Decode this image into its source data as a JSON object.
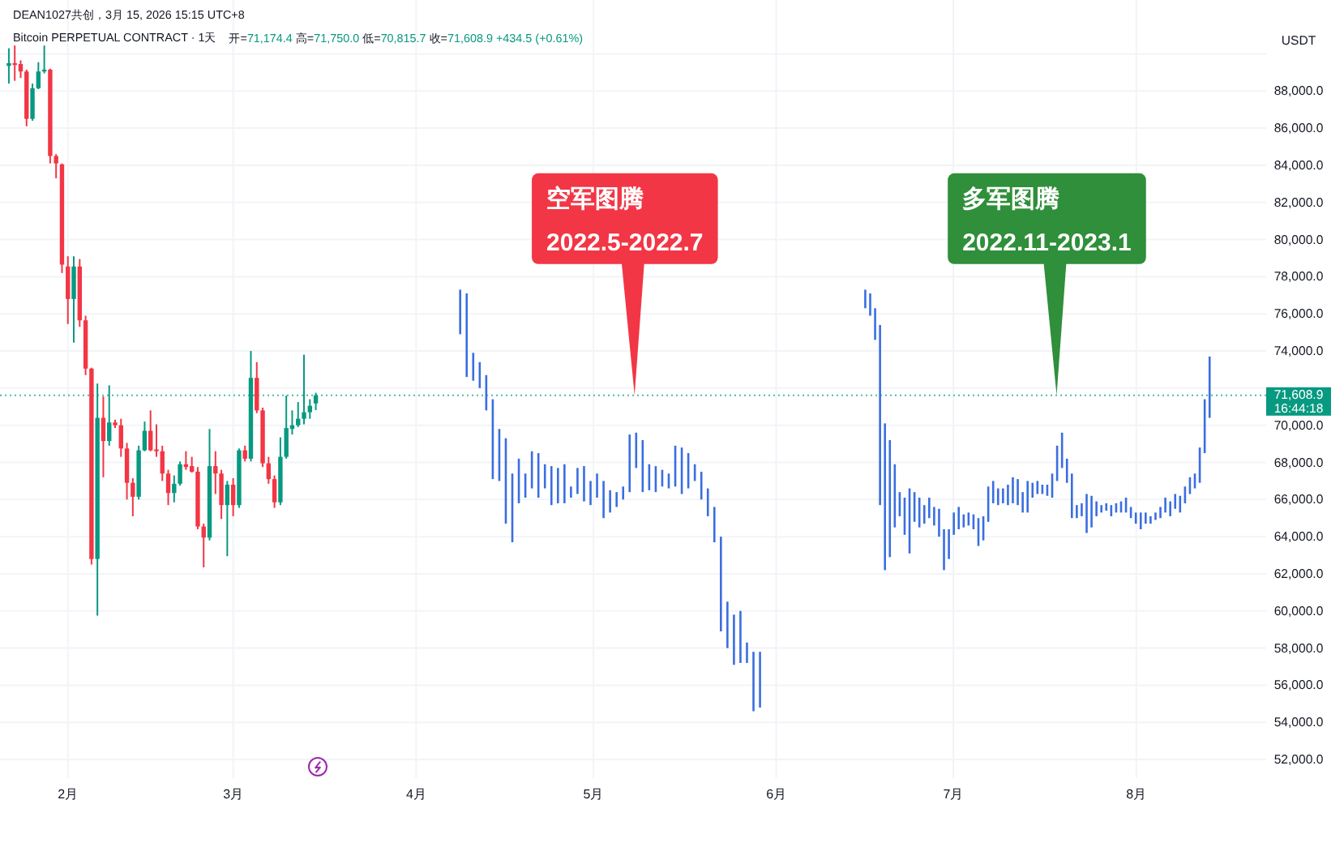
{
  "chart_data": {
    "type": "candlestick",
    "title": "Bitcoin PERPETUAL CONTRACT · 1天",
    "subtitle": "开=71,174.4 高=71,750.0 低=70,815.7 收=71,608.9 +434.5 (+0.61%)",
    "ylabel": "USDT",
    "x": [
      "2026-01-22",
      "2026-01-23",
      "2026-01-24",
      "2026-01-25",
      "2026-01-26",
      "2026-01-27",
      "2026-01-28",
      "2026-01-29",
      "2026-01-30",
      "2026-01-31",
      "2026-02-01",
      "2026-02-02",
      "2026-02-03",
      "2026-02-04",
      "2026-02-05",
      "2026-02-06",
      "2026-02-07",
      "2026-02-08",
      "2026-02-09",
      "2026-02-10",
      "2026-02-11",
      "2026-02-12",
      "2026-02-13",
      "2026-02-14",
      "2026-02-15",
      "2026-02-16",
      "2026-02-17",
      "2026-02-18",
      "2026-02-19",
      "2026-02-20",
      "2026-02-21",
      "2026-02-22",
      "2026-02-23",
      "2026-02-24",
      "2026-02-25",
      "2026-02-26",
      "2026-02-27",
      "2026-02-28",
      "2026-03-01",
      "2026-03-02",
      "2026-03-03",
      "2026-03-04",
      "2026-03-05",
      "2026-03-06",
      "2026-03-07",
      "2026-03-08",
      "2026-03-09",
      "2026-03-10",
      "2026-03-11",
      "2026-03-12",
      "2026-03-13",
      "2026-03-14",
      "2026-03-15"
    ],
    "ohlc": [
      [
        89350,
        90300,
        88400,
        89500
      ],
      [
        89500,
        90450,
        88550,
        89400
      ],
      [
        89450,
        89650,
        88700,
        89050
      ],
      [
        89050,
        89150,
        86100,
        86500
      ],
      [
        86500,
        88400,
        86400,
        88150
      ],
      [
        88150,
        89550,
        88100,
        89050
      ],
      [
        89050,
        90450,
        88950,
        89150
      ],
      [
        89150,
        89200,
        84100,
        84500
      ],
      [
        84500,
        84600,
        83300,
        84100
      ],
      [
        84050,
        84100,
        78200,
        78650
      ],
      [
        78550,
        79100,
        75450,
        76800
      ],
      [
        76800,
        79100,
        74450,
        78550
      ],
      [
        78550,
        78950,
        75300,
        75650
      ],
      [
        75650,
        75900,
        72700,
        73050
      ],
      [
        73050,
        73100,
        62500,
        62800
      ],
      [
        62800,
        72250,
        59750,
        70400
      ],
      [
        70400,
        71550,
        67200,
        69150
      ],
      [
        69150,
        72150,
        68900,
        70150
      ],
      [
        70150,
        70300,
        69850,
        70000
      ],
      [
        70000,
        70350,
        68300,
        68750
      ],
      [
        68750,
        69050,
        66000,
        66900
      ],
      [
        66900,
        67150,
        65100,
        66150
      ],
      [
        66150,
        68900,
        66000,
        68650
      ],
      [
        68650,
        70200,
        68600,
        69700
      ],
      [
        69700,
        70800,
        68600,
        68650
      ],
      [
        68700,
        70050,
        68300,
        68600
      ],
      [
        68600,
        68900,
        67000,
        67400
      ],
      [
        67400,
        67600,
        65700,
        66350
      ],
      [
        66350,
        67300,
        65850,
        66850
      ],
      [
        66850,
        68050,
        66750,
        67900
      ],
      [
        67900,
        68600,
        67600,
        67750
      ],
      [
        67800,
        68300,
        67450,
        67500
      ],
      [
        67500,
        67750,
        64400,
        64550
      ],
      [
        64550,
        64700,
        62350,
        63950
      ],
      [
        63950,
        69800,
        63800,
        67800
      ],
      [
        67800,
        68600,
        66300,
        67400
      ],
      [
        67400,
        67600,
        64950,
        65700
      ],
      [
        65700,
        67000,
        62950,
        66800
      ],
      [
        66800,
        67150,
        65100,
        65700
      ],
      [
        65700,
        68750,
        65550,
        68650
      ],
      [
        68650,
        68900,
        68050,
        68200
      ],
      [
        68200,
        74000,
        68050,
        72550
      ],
      [
        72550,
        73400,
        70650,
        70800
      ],
      [
        70800,
        70950,
        67750,
        67950
      ],
      [
        67950,
        68300,
        66850,
        67100
      ],
      [
        67100,
        67300,
        65550,
        65850
      ],
      [
        65850,
        69350,
        65700,
        68300
      ],
      [
        68300,
        71600,
        68200,
        69850
      ],
      [
        69800,
        70800,
        69500,
        70000
      ],
      [
        70000,
        71250,
        69900,
        70350
      ],
      [
        70350,
        73800,
        70050,
        70700
      ],
      [
        70700,
        71400,
        70350,
        71050
      ],
      [
        71174.4,
        71750.0,
        70815.7,
        71608.9
      ]
    ],
    "colors": [
      "#089981",
      "#f23645",
      "#f23645",
      "#f23645",
      "#089981",
      "#089981",
      "#089981",
      "#f23645",
      "#f23645",
      "#f23645",
      "#f23645",
      "#089981",
      "#f23645",
      "#f23645",
      "#f23645",
      "#089981",
      "#f23645",
      "#089981",
      "#f23645",
      "#f23645",
      "#f23645",
      "#f23645",
      "#089981",
      "#089981",
      "#f23645",
      "#f23645",
      "#f23645",
      "#f23645",
      "#089981",
      "#089981",
      "#f23645",
      "#f23645",
      "#f23645",
      "#f23645",
      "#089981",
      "#f23645",
      "#f23645",
      "#089981",
      "#f23645",
      "#089981",
      "#f23645",
      "#089981",
      "#f23645",
      "#f23645",
      "#f23645",
      "#f23645",
      "#089981",
      "#089981",
      "#089981",
      "#089981",
      "#089981",
      "#089981",
      "#089981"
    ],
    "series": [
      {
        "type": "bar",
        "color": "#3a6ee0",
        "x": [
          "2026-04-08T11:00",
          "2026-04-09T13:30",
          "2026-04-10T16:00",
          "2026-04-11T18:30",
          "2026-04-12T21:00",
          "2026-04-13T23:30",
          "2026-04-15T02:00",
          "2026-04-16T04:30",
          "2026-04-17T07:00",
          "2026-04-18T09:30",
          "2026-04-19T12:00",
          "2026-04-20T14:30",
          "2026-04-21T17:00",
          "2026-04-22T19:30",
          "2026-04-23T22:00",
          "2026-04-25T00:30",
          "2026-04-26T03:00",
          "2026-04-27T05:30",
          "2026-04-28T08:00",
          "2026-04-29T10:30",
          "2026-04-30T13:00",
          "2026-05-01T15:30",
          "2026-05-02T18:00",
          "2026-05-03T20:30",
          "2026-05-04T23:00",
          "2026-05-06T01:30",
          "2026-05-07T04:00",
          "2026-05-08T06:30",
          "2026-05-09T09:00",
          "2026-05-10T11:30",
          "2026-05-11T14:00",
          "2026-05-12T16:30",
          "2026-05-13T19:00",
          "2026-05-14T21:30",
          "2026-05-16T00:00",
          "2026-05-17T02:30",
          "2026-05-18T05:00",
          "2026-05-19T07:30",
          "2026-05-20T10:00",
          "2026-05-21T12:30",
          "2026-05-22T15:00",
          "2026-05-23T17:30",
          "2026-05-24T20:00",
          "2026-05-25T22:30",
          "2026-05-27T01:00",
          "2026-05-28T03:30",
          "2026-05-29T06:00"
        ],
        "base": [
          74900,
          72600,
          72400,
          72000,
          70800,
          67100,
          67000,
          64700,
          63700,
          65800,
          66100,
          66600,
          66100,
          66600,
          65700,
          65800,
          65800,
          66100,
          66300,
          65900,
          65700,
          66100,
          65000,
          65300,
          65600,
          66000,
          66400,
          67700,
          66400,
          66500,
          66400,
          66700,
          66600,
          66700,
          66300,
          66600,
          67000,
          66000,
          65100,
          63700,
          58900,
          58000,
          57100,
          57200,
          57200,
          54600,
          54800
        ],
        "values": [
          2400,
          4500,
          1500,
          1400,
          1900,
          4300,
          2800,
          4600,
          3700,
          2400,
          1300,
          2000,
          2400,
          1300,
          2100,
          1900,
          2100,
          600,
          1400,
          1900,
          1300,
          1300,
          2000,
          1200,
          800,
          700,
          3100,
          1900,
          2800,
          1400,
          1400,
          900,
          800,
          2200,
          2500,
          1900,
          900,
          1500,
          1500,
          1900,
          5100,
          2500,
          2700,
          2800,
          1100,
          3200,
          3000
        ]
      },
      {
        "type": "bar",
        "color": "#3a6ee0",
        "x": [
          "2026-06-16T02:00",
          "2026-06-16T22:00",
          "2026-06-17T18:00",
          "2026-06-18T14:00",
          "2026-06-19T10:00",
          "2026-06-20T06:00",
          "2026-06-21T02:00",
          "2026-06-21T22:00",
          "2026-06-22T18:00",
          "2026-06-23T14:00",
          "2026-06-24T10:00",
          "2026-06-25T06:00",
          "2026-06-26T02:00",
          "2026-06-26T22:00",
          "2026-06-27T18:00",
          "2026-06-28T14:00",
          "2026-06-29T10:00",
          "2026-06-30T06:00",
          "2026-07-01T02:00",
          "2026-07-01T22:00",
          "2026-07-02T18:00",
          "2026-07-03T14:00",
          "2026-07-04T10:00",
          "2026-07-05T06:00",
          "2026-07-06T02:00",
          "2026-07-06T22:00",
          "2026-07-07T18:00",
          "2026-07-08T14:00",
          "2026-07-09T10:00",
          "2026-07-10T06:00",
          "2026-07-11T02:00",
          "2026-07-11T22:00",
          "2026-07-12T18:00",
          "2026-07-13T14:00",
          "2026-07-14T10:00",
          "2026-07-15T06:00",
          "2026-07-16T02:00",
          "2026-07-16T22:00",
          "2026-07-17T18:00",
          "2026-07-18T14:00",
          "2026-07-19T10:00",
          "2026-07-20T06:00",
          "2026-07-21T02:00",
          "2026-07-21T22:00",
          "2026-07-22T18:00",
          "2026-07-23T14:00",
          "2026-07-24T10:00",
          "2026-07-25T06:00",
          "2026-07-26T02:00",
          "2026-07-26T22:00",
          "2026-07-27T18:00",
          "2026-07-28T14:00",
          "2026-07-29T10:00",
          "2026-07-30T06:00",
          "2026-07-31T02:00",
          "2026-07-31T22:00",
          "2026-08-01T18:00",
          "2026-08-02T14:00",
          "2026-08-03T10:00",
          "2026-08-04T06:00",
          "2026-08-05T02:00",
          "2026-08-05T22:00",
          "2026-08-06T18:00",
          "2026-08-07T14:00",
          "2026-08-08T10:00",
          "2026-08-09T06:00",
          "2026-08-10T02:00",
          "2026-08-10T22:00",
          "2026-08-11T18:00",
          "2026-08-12T14:00",
          "2026-08-13T10:00"
        ],
        "base": [
          76300,
          75900,
          74600,
          65700,
          62200,
          62900,
          64500,
          65100,
          64100,
          63100,
          64800,
          64500,
          64700,
          65000,
          64600,
          64000,
          62200,
          62800,
          64100,
          64400,
          64500,
          64600,
          64400,
          63500,
          63800,
          64800,
          65800,
          65700,
          65800,
          65700,
          65800,
          65700,
          65300,
          65300,
          66100,
          66300,
          66300,
          66200,
          66100,
          67000,
          67700,
          66900,
          65000,
          65000,
          65100,
          64200,
          64500,
          65100,
          65300,
          65400,
          65100,
          65300,
          65300,
          65300,
          65000,
          64700,
          64400,
          64700,
          64700,
          64900,
          65000,
          65300,
          65100,
          65500,
          65300,
          65800,
          66300,
          66600,
          66900,
          68500,
          70400
        ],
        "values": [
          1000,
          1200,
          1700,
          9700,
          7900,
          6300,
          3400,
          1300,
          2000,
          3500,
          1600,
          1600,
          1000,
          1100,
          1000,
          1500,
          2200,
          1600,
          1200,
          1200,
          700,
          700,
          800,
          1500,
          1300,
          1900,
          1200,
          900,
          800,
          1100,
          1400,
          1400,
          1100,
          1700,
          800,
          700,
          500,
          600,
          1300,
          1900,
          1900,
          1300,
          2400,
          700,
          700,
          2100,
          1700,
          800,
          400,
          400,
          600,
          500,
          600,
          800,
          600,
          600,
          900,
          600,
          400,
          400,
          600,
          800,
          800,
          800,
          900,
          900,
          900,
          800,
          1900,
          2900,
          3300
        ]
      }
    ],
    "xlim": [
      "2026-01-20T12:00",
      "2026-08-23"
    ],
    "xticks": [
      {
        "value": "2026-02-01",
        "label": "2月"
      },
      {
        "value": "2026-03-01",
        "label": "3月"
      },
      {
        "value": "2026-04-01",
        "label": "4月"
      },
      {
        "value": "2026-05-01",
        "label": "5月"
      },
      {
        "value": "2026-06-01",
        "label": "6月"
      },
      {
        "value": "2026-07-01",
        "label": "7月"
      },
      {
        "value": "2026-08-01",
        "label": "8月"
      }
    ],
    "ylim": [
      51000,
      92900
    ],
    "yticks": [
      {
        "value": 52000,
        "label": "52,000.0"
      },
      {
        "value": 54000,
        "label": "54,000.0"
      },
      {
        "value": 56000,
        "label": "56,000.0"
      },
      {
        "value": 58000,
        "label": "58,000.0"
      },
      {
        "value": 60000,
        "label": "60,000.0"
      },
      {
        "value": 62000,
        "label": "62,000.0"
      },
      {
        "value": 64000,
        "label": "64,000.0"
      },
      {
        "value": 66000,
        "label": "66,000.0"
      },
      {
        "value": 68000,
        "label": "68,000.0"
      },
      {
        "value": 70000,
        "label": "70,000.0"
      },
      {
        "value": 72000,
        "label": null
      },
      {
        "value": 74000,
        "label": "74,000.0"
      },
      {
        "value": 76000,
        "label": "76,000.0"
      },
      {
        "value": 78000,
        "label": "78,000.0"
      },
      {
        "value": 80000,
        "label": "80,000.0"
      },
      {
        "value": 82000,
        "label": "82,000.0"
      },
      {
        "value": 84000,
        "label": "84,000.0"
      },
      {
        "value": 86000,
        "label": "86,000.0"
      },
      {
        "value": 88000,
        "label": "88,000.0"
      },
      {
        "value": 90000,
        "label": null
      }
    ],
    "grid": true,
    "ref_lines": [
      {
        "axis": "y",
        "value": 71608.9,
        "label": "71,608.9\n16:44:18",
        "color": "#089981",
        "line_style": "dotted"
      }
    ],
    "annotations": [
      "DEAN1027共创，3月 15, 2026 15:15 UTC+8",
      {
        "text": "空军图腾\n2022.5-2022.7",
        "x": "2026-05-08",
        "y": 71608.9
      },
      {
        "text": "多军图腾\n2022.11-2023.1",
        "x": "2026-07-18T12:00",
        "y": 71608.9
      }
    ]
  }
}
